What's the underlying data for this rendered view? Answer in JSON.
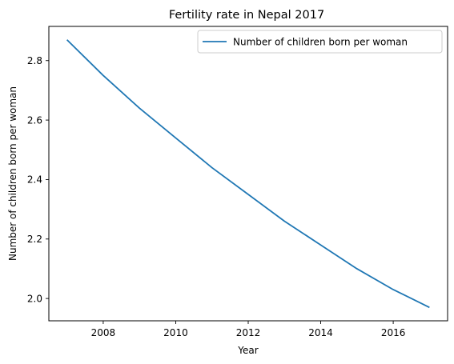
{
  "chart_data": {
    "type": "line",
    "title": "Fertility rate in Nepal 2017",
    "xlabel": "Year",
    "ylabel": "Number of children born per woman",
    "xlim": [
      2006.5,
      2017.5
    ],
    "ylim": [
      1.925,
      2.915
    ],
    "xticks": [
      2008,
      2010,
      2012,
      2014,
      2016
    ],
    "yticks": [
      2.0,
      2.2,
      2.4,
      2.6,
      2.8
    ],
    "grid": false,
    "legend_position": "top-right",
    "series": [
      {
        "name": "Number of children born per woman",
        "color": "#1f77b4",
        "x": [
          2007,
          2008,
          2009,
          2010,
          2011,
          2012,
          2013,
          2014,
          2015,
          2016,
          2017
        ],
        "y": [
          2.87,
          2.75,
          2.64,
          2.54,
          2.44,
          2.35,
          2.26,
          2.18,
          2.1,
          2.03,
          1.97
        ]
      }
    ]
  }
}
